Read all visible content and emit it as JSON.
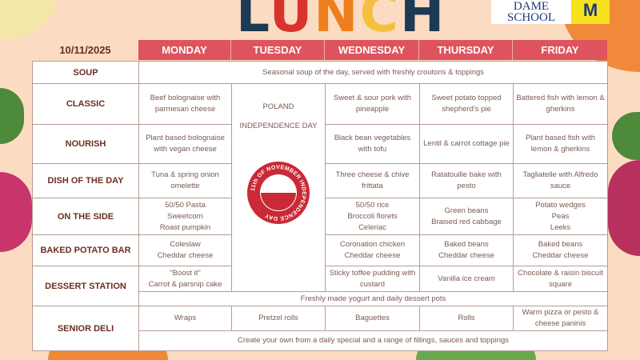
{
  "title": [
    "L",
    "U",
    "N",
    "C",
    "H"
  ],
  "logo": {
    "line1": "DAME",
    "line2": "SCHOOL",
    "crest": "M"
  },
  "date": "10/11/2025",
  "days": [
    "MONDAY",
    "TUESDAY",
    "WEDNESDAY",
    "THURSDAY",
    "FRIDAY"
  ],
  "soup": {
    "label": "SOUP",
    "all": "Seasonal soup of the day, served with freshly croutons & toppings"
  },
  "tuesday": {
    "line1": "POLAND",
    "line2": "INDEPENDENCE DAY",
    "badge_text": "11th OF NOVEMBER INDEPENDENCE DAY"
  },
  "rows": [
    {
      "label": "CLASSIC",
      "mon": "Beef bolognaise with parmesan cheese",
      "wed": "Sweet & sour pork with pineapple",
      "thu": "Sweet potato topped shepherd's pie",
      "fri": "Battered fish with lemon & gherkins"
    },
    {
      "label": "NOURISH",
      "mon": "Plant based bolognaise with vegan cheese",
      "wed": "Black bean vegetables with tofu",
      "thu": "Lentil & carrot cottage pie",
      "fri": "Plant based fish with lemon & gherkins"
    },
    {
      "label": "DISH OF THE DAY",
      "mon": "Tuna & spring onion omelette",
      "wed": "Three cheese & chive frittata",
      "thu": "Ratatouille bake with pesto",
      "fri": "Tagliatelle with Alfredo sauce"
    },
    {
      "label": "ON THE SIDE",
      "mon": "50/50 Pasta\nSweetcorn\nRoast pumpkin",
      "wed": "50/50 rice\nBroccoli florets\nCeleriac",
      "thu": "Green beans\nBraised red cabbage",
      "fri": "Potato wedges\nPeas\nLeeks"
    },
    {
      "label": "BAKED POTATO BAR",
      "mon": "Coleslaw\nCheddar cheese",
      "wed": "Coronation chicken\nCheddar cheese",
      "thu": "Baked beans\nCheddar cheese",
      "fri": "Baked beans\nCheddar cheese"
    },
    {
      "label": "DESSERT STATION",
      "mon": "\"Boost it\"\nCarrot & parsnip cake",
      "wed": "Sticky toffee pudding with custard",
      "thu": "Vanilla ice cream",
      "fri": "Chocolate & raisin biscuit square"
    }
  ],
  "dessert_all": "Freshly made yogurt and daily dessert pots",
  "senior": {
    "label": "SENIOR DELI",
    "mon": "Wraps",
    "tue": "Pretzel rolls",
    "wed": "Baguettes",
    "thu": "Rolls",
    "fri": "Warm pizza or pesto & cheese paninis",
    "all": "Create your own from a daily special and a range of fillings, sauces and toppings"
  }
}
